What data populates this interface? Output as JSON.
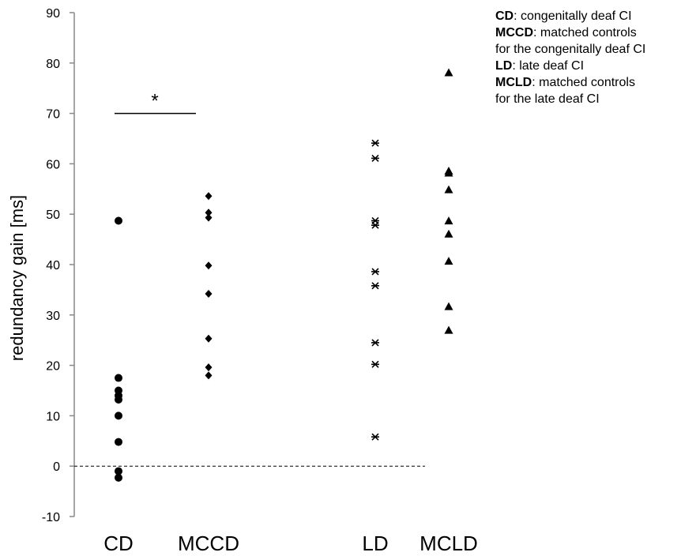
{
  "chart_data": {
    "type": "scatter",
    "ylabel": "redundancy gain [ms]",
    "ylim": [
      -10,
      90
    ],
    "yticks": [
      -10,
      0,
      10,
      20,
      30,
      40,
      50,
      60,
      70,
      80,
      90
    ],
    "categories": [
      "CD",
      "MCCD",
      "LD",
      "MCLD"
    ],
    "grid": false,
    "reference_line": {
      "y": 0,
      "style": "dashed"
    },
    "significance": {
      "between": [
        "CD",
        "MCCD"
      ],
      "y": 70,
      "label": "*"
    },
    "series": [
      {
        "name": "CD",
        "marker": "circle",
        "values": [
          48.7,
          17.5,
          15,
          14,
          13.2,
          10,
          4.8,
          -1,
          -2.3
        ]
      },
      {
        "name": "MCCD",
        "marker": "diamond",
        "values": [
          53.6,
          50.3,
          49.3,
          39.8,
          34.2,
          25.3,
          19.6,
          18
        ]
      },
      {
        "name": "LD",
        "marker": "asterisk",
        "values": [
          64.1,
          61.1,
          48.7,
          47.8,
          38.6,
          35.8,
          24.5,
          20.2,
          5.8
        ]
      },
      {
        "name": "MCLD",
        "marker": "triangle",
        "values": [
          78,
          58.5,
          58.1,
          54.8,
          48.6,
          46,
          40.6,
          31.6,
          26.9
        ]
      }
    ],
    "legend": {
      "placement": "top-right",
      "entries": [
        {
          "key": "CD",
          "text": ": congenitally deaf CI"
        },
        {
          "key": "MCCD",
          "text": ": matched controls"
        },
        {
          "key": "",
          "text": "for the congenitally deaf CI"
        },
        {
          "key": "LD",
          "text": ": late deaf CI"
        },
        {
          "key": "MCLD",
          "text": ": matched controls"
        },
        {
          "key": "",
          "text": "for the late deaf CI"
        }
      ]
    }
  }
}
